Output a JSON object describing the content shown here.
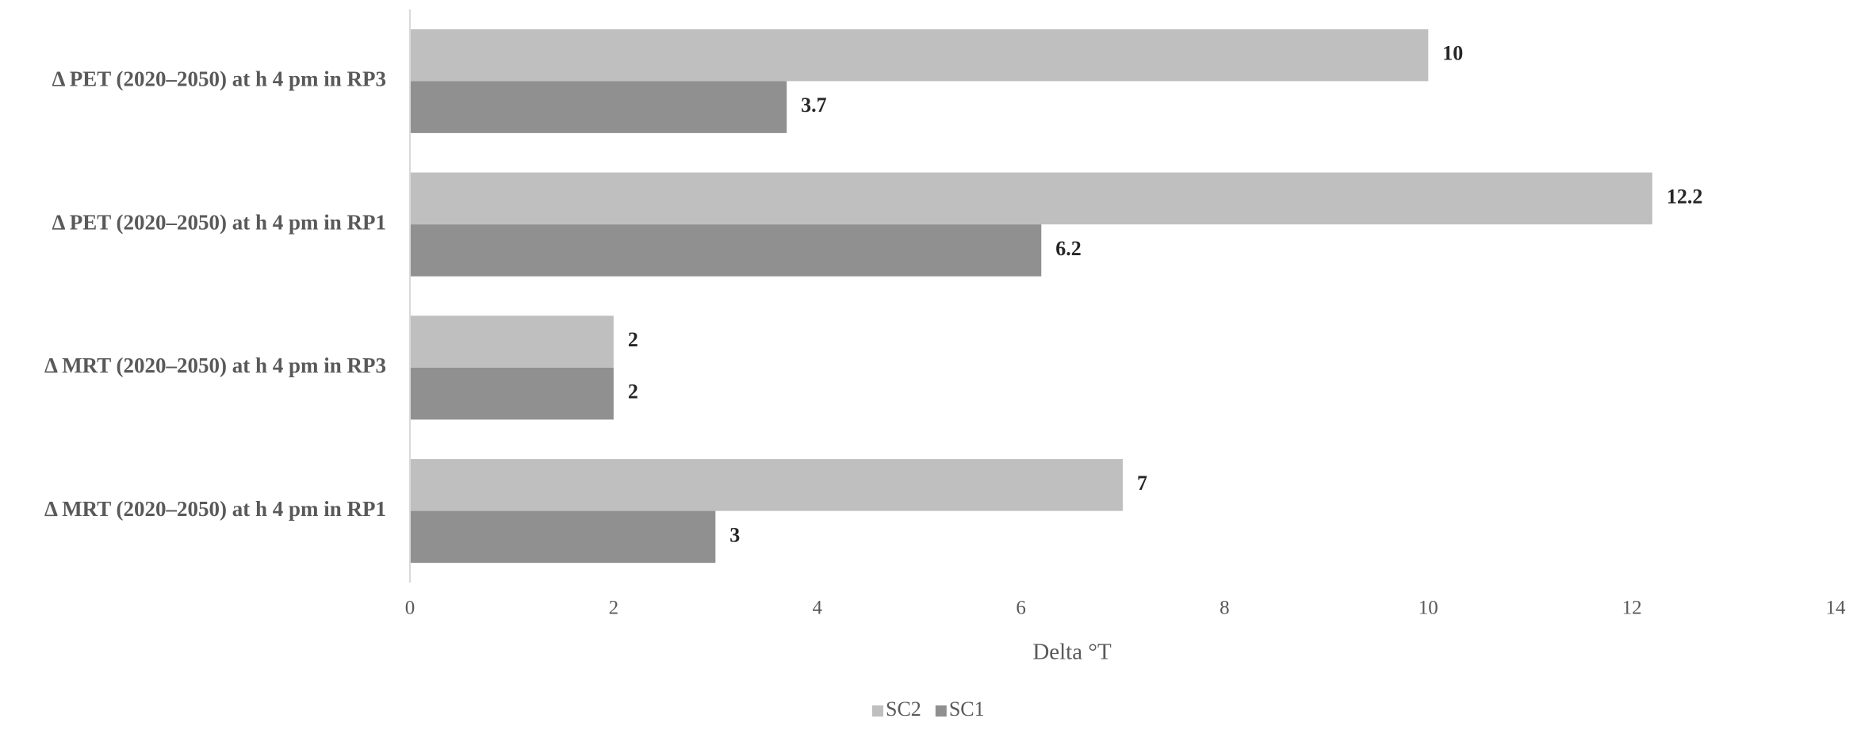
{
  "chart_data": {
    "type": "bar",
    "orientation": "horizontal",
    "categories": [
      "Δ PET (2020–2050) at h 4 pm in RP3",
      "Δ PET (2020–2050) at h 4 pm in RP1",
      "Δ MRT (2020–2050) at h 4 pm in RP3",
      "Δ MRT (2020–2050) at h 4 pm in RP1"
    ],
    "series": [
      {
        "name": "SC2",
        "color": "#bfbfbf",
        "values": [
          10,
          12.2,
          2,
          7
        ]
      },
      {
        "name": "SC1",
        "color": "#909090",
        "values": [
          3.7,
          6.2,
          2,
          3
        ]
      }
    ],
    "xlabel": "Delta °T",
    "xlim": [
      0,
      14
    ],
    "xticks": [
      0,
      2,
      4,
      6,
      8,
      10,
      12,
      14
    ],
    "grid": false,
    "legend": "bottom"
  }
}
